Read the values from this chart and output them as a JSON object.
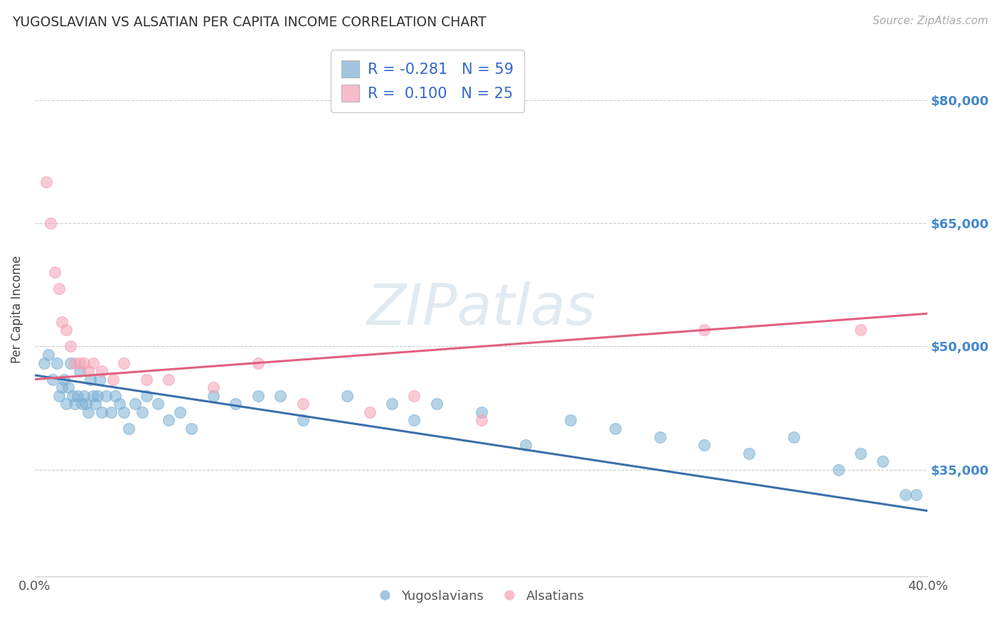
{
  "title": "YUGOSLAVIAN VS ALSATIAN PER CAPITA INCOME CORRELATION CHART",
  "source": "Source: ZipAtlas.com",
  "ylabel": "Per Capita Income",
  "watermark": "ZIPatlas",
  "xlim": [
    0.0,
    0.4
  ],
  "ylim": [
    22000,
    87000
  ],
  "yticks": [
    35000,
    50000,
    65000,
    80000
  ],
  "ytick_labels": [
    "$35,000",
    "$50,000",
    "$65,000",
    "$80,000"
  ],
  "xticks": [
    0.0,
    0.1,
    0.2,
    0.3,
    0.4
  ],
  "xtick_labels": [
    "0.0%",
    "",
    "",
    "",
    "40.0%"
  ],
  "blue_color": "#7BAFD4",
  "pink_color": "#F4A0B5",
  "blue_line_color": "#3B6FAB",
  "pink_line_color": "#E06080",
  "legend_R_blue": "-0.281",
  "legend_N_blue": "59",
  "legend_R_pink": "0.100",
  "legend_N_pink": "25",
  "legend_label_blue": "Yugoslavians",
  "legend_label_pink": "Alsatians",
  "blue_x": [
    0.004,
    0.006,
    0.008,
    0.01,
    0.011,
    0.012,
    0.013,
    0.014,
    0.015,
    0.016,
    0.017,
    0.018,
    0.019,
    0.02,
    0.021,
    0.022,
    0.023,
    0.024,
    0.025,
    0.026,
    0.027,
    0.028,
    0.029,
    0.03,
    0.032,
    0.034,
    0.036,
    0.038,
    0.04,
    0.042,
    0.045,
    0.048,
    0.05,
    0.055,
    0.06,
    0.065,
    0.07,
    0.08,
    0.09,
    0.1,
    0.11,
    0.12,
    0.14,
    0.16,
    0.17,
    0.18,
    0.2,
    0.22,
    0.24,
    0.26,
    0.28,
    0.3,
    0.32,
    0.34,
    0.36,
    0.37,
    0.38,
    0.39,
    0.395
  ],
  "blue_y": [
    48000,
    49000,
    46000,
    48000,
    44000,
    45000,
    46000,
    43000,
    45000,
    48000,
    44000,
    43000,
    44000,
    47000,
    43000,
    44000,
    43000,
    42000,
    46000,
    44000,
    43000,
    44000,
    46000,
    42000,
    44000,
    42000,
    44000,
    43000,
    42000,
    40000,
    43000,
    42000,
    44000,
    43000,
    41000,
    42000,
    40000,
    44000,
    43000,
    44000,
    44000,
    41000,
    44000,
    43000,
    41000,
    43000,
    42000,
    38000,
    41000,
    40000,
    39000,
    38000,
    37000,
    39000,
    35000,
    37000,
    36000,
    32000,
    32000
  ],
  "pink_x": [
    0.005,
    0.007,
    0.009,
    0.011,
    0.012,
    0.014,
    0.016,
    0.018,
    0.02,
    0.022,
    0.024,
    0.026,
    0.03,
    0.035,
    0.04,
    0.05,
    0.06,
    0.08,
    0.1,
    0.12,
    0.15,
    0.17,
    0.2,
    0.3,
    0.37
  ],
  "pink_y": [
    70000,
    65000,
    59000,
    57000,
    53000,
    52000,
    50000,
    48000,
    48000,
    48000,
    47000,
    48000,
    47000,
    46000,
    48000,
    46000,
    46000,
    45000,
    48000,
    43000,
    42000,
    44000,
    41000,
    52000,
    52000
  ],
  "blue_trend_x": [
    0.0,
    0.4
  ],
  "blue_trend_y": [
    46500,
    30000
  ],
  "pink_trend_x": [
    0.0,
    0.4
  ],
  "pink_trend_y": [
    46000,
    54000
  ],
  "background_color": "#ffffff",
  "grid_color": "#cccccc",
  "ylabel_color": "#444444",
  "ytick_color": "#4488CC",
  "title_color": "#333333"
}
